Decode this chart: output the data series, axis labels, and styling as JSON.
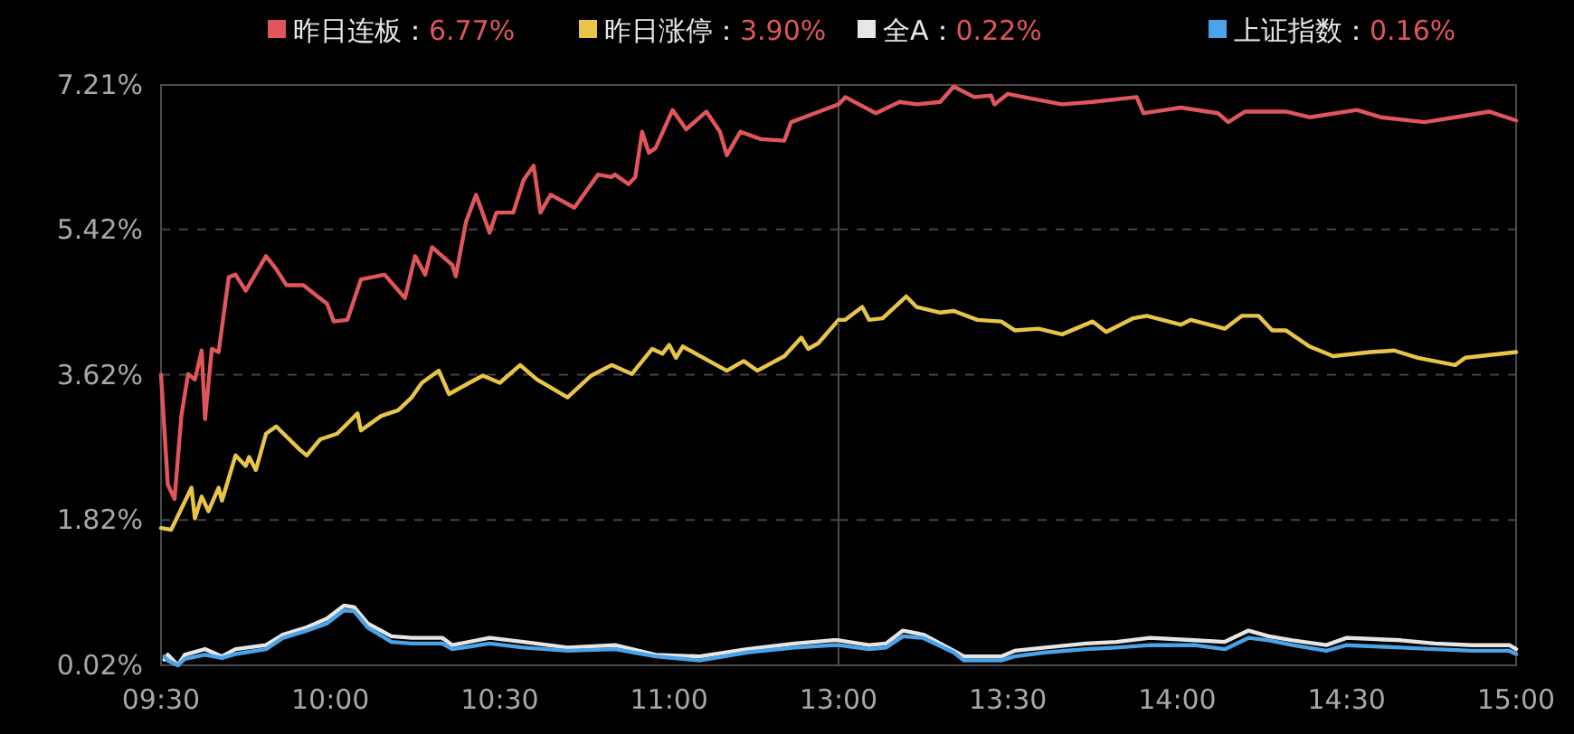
{
  "chart_data": [
    {
      "type": "line",
      "legend": "top",
      "grid": "y",
      "xlim": [
        9.5,
        11.5
      ],
      "xticks": [
        {
          "value": 9.5,
          "label": "09:30"
        },
        {
          "value": 10,
          "label": "10:00"
        },
        {
          "value": 10.5,
          "label": "10:30"
        },
        {
          "value": 11,
          "label": "11:00"
        }
      ],
      "ylim": [
        0.02,
        7.21
      ],
      "yticks": [
        {
          "value": 0.02,
          "label": "0.02%"
        },
        {
          "value": 1.82,
          "label": "1.82%"
        },
        {
          "value": 3.62,
          "label": "3.62%"
        },
        {
          "value": 5.42,
          "label": "5.42%"
        },
        {
          "value": 7.21,
          "label": "7.21%"
        }
      ],
      "series": [
        {
          "name": "昨日连板：6.77%",
          "color": "#e0565b",
          "x": [
            9.5,
            9.52,
            9.54,
            9.56,
            9.58,
            9.6,
            9.62,
            9.63,
            9.65,
            9.67,
            9.7,
            9.72,
            9.75,
            9.81,
            9.84,
            9.87,
            9.92,
            9.99,
            10.01,
            10.05,
            10.09,
            10.16,
            10.22,
            10.25,
            10.28,
            10.3,
            10.36,
            10.37,
            10.4,
            10.43,
            10.47,
            10.49,
            10.54,
            10.57,
            10.6,
            10.62,
            10.65,
            10.72,
            10.79,
            10.83,
            10.84,
            10.88,
            10.9,
            10.92,
            10.94,
            10.96,
            11.01,
            11.05,
            11.11,
            11.15,
            11.17,
            11.21,
            11.27,
            11.34,
            11.36,
            11.43,
            11.5
          ],
          "values": [
            3.62,
            2.26,
            2.08,
            3.11,
            3.63,
            3.56,
            3.92,
            3.07,
            3.94,
            3.9,
            4.83,
            4.86,
            4.66,
            5.09,
            4.93,
            4.73,
            4.73,
            4.5,
            4.28,
            4.3,
            4.8,
            4.86,
            4.57,
            5.09,
            4.86,
            5.2,
            4.98,
            4.84,
            5.51,
            5.85,
            5.38,
            5.63,
            5.63,
            6.03,
            6.21,
            5.63,
            5.85,
            5.69,
            6.1,
            6.07,
            6.1,
            5.98,
            6.07,
            6.63,
            6.37,
            6.43,
            6.9,
            6.66,
            6.88,
            6.63,
            6.34,
            6.63,
            6.54,
            6.52,
            6.75,
            6.86,
            6.97
          ]
        },
        {
          "name": "昨日涨停：3.90%",
          "color": "#e8c547",
          "x": [
            9.5,
            9.53,
            9.59,
            9.6,
            9.62,
            9.64,
            9.67,
            9.68,
            9.72,
            9.75,
            9.76,
            9.78,
            9.81,
            9.84,
            9.91,
            9.93,
            9.97,
            10.02,
            10.08,
            10.09,
            10.15,
            10.2,
            10.24,
            10.27,
            10.32,
            10.35,
            10.41,
            10.45,
            10.5,
            10.56,
            10.61,
            10.7,
            10.77,
            10.83,
            10.89,
            10.95,
            10.98,
            11.0,
            11.02,
            11.04,
            11.17,
            11.22,
            11.26,
            11.34,
            11.39,
            11.41,
            11.44,
            11.5
          ],
          "values": [
            1.72,
            1.7,
            2.22,
            1.84,
            2.11,
            1.93,
            2.22,
            2.06,
            2.62,
            2.49,
            2.6,
            2.44,
            2.89,
            2.98,
            2.69,
            2.62,
            2.82,
            2.89,
            3.14,
            2.93,
            3.11,
            3.18,
            3.34,
            3.52,
            3.67,
            3.38,
            3.52,
            3.61,
            3.52,
            3.74,
            3.56,
            3.34,
            3.61,
            3.74,
            3.63,
            3.94,
            3.88,
            3.99,
            3.83,
            3.97,
            3.67,
            3.79,
            3.67,
            3.85,
            4.08,
            3.94,
            4.01,
            4.3
          ]
        },
        {
          "name": "全A：0.22%",
          "color": "#e6e6e6",
          "x": [
            9.51,
            9.52,
            9.55,
            9.57,
            9.63,
            9.68,
            9.72,
            9.81,
            9.86,
            9.93,
            9.99,
            10.04,
            10.07,
            10.11,
            10.18,
            10.24,
            10.33,
            10.36,
            10.47,
            10.57,
            10.7,
            10.84,
            10.96,
            11.09,
            11.23,
            11.37,
            11.48,
            11.5
          ],
          "values": [
            0.09,
            0.15,
            0.02,
            0.15,
            0.22,
            0.13,
            0.22,
            0.27,
            0.4,
            0.49,
            0.6,
            0.76,
            0.74,
            0.54,
            0.38,
            0.36,
            0.36,
            0.27,
            0.36,
            0.31,
            0.24,
            0.27,
            0.15,
            0.13,
            0.22,
            0.29,
            0.33,
            0.33
          ]
        },
        {
          "name": "上证指数：0.16%",
          "color": "#4aa3e8",
          "x": [
            9.51,
            9.52,
            9.55,
            9.57,
            9.63,
            9.68,
            9.72,
            9.81,
            9.86,
            9.93,
            9.99,
            10.04,
            10.07,
            10.11,
            10.18,
            10.24,
            10.33,
            10.36,
            10.47,
            10.57,
            10.7,
            10.84,
            10.96,
            11.09,
            11.23,
            11.37,
            11.48,
            11.5
          ],
          "values": [
            0.13,
            0.08,
            0.02,
            0.1,
            0.15,
            0.11,
            0.16,
            0.22,
            0.36,
            0.45,
            0.54,
            0.7,
            0.69,
            0.49,
            0.31,
            0.29,
            0.29,
            0.22,
            0.29,
            0.24,
            0.2,
            0.22,
            0.13,
            0.08,
            0.18,
            0.24,
            0.27,
            0.27
          ]
        }
      ]
    },
    {
      "type": "line",
      "grid": "y",
      "tick_labels": "x",
      "xlim": [
        13,
        15
      ],
      "xticks": [
        {
          "value": 13,
          "label": "13:00"
        },
        {
          "value": 13.5,
          "label": "13:30"
        },
        {
          "value": 14,
          "label": "14:00"
        },
        {
          "value": 14.5,
          "label": "14:30"
        },
        {
          "value": 15,
          "label": "15:00"
        }
      ],
      "ylim": [
        0.02,
        7.21
      ],
      "yticks": [
        0.02,
        1.82,
        3.62,
        5.42,
        7.21
      ],
      "series": [
        {
          "color": "#e0565b",
          "x": [
            13.0,
            13.02,
            13.11,
            13.18,
            13.23,
            13.3,
            13.34,
            13.4,
            13.45,
            13.46,
            13.5,
            13.57,
            13.66,
            13.75,
            13.88,
            13.9,
            14.01,
            14.12,
            14.15,
            14.2,
            14.32,
            14.39,
            14.53,
            14.6,
            14.73,
            14.82,
            14.92,
            15.0
          ],
          "values": [
            6.97,
            7.06,
            6.86,
            7.0,
            6.97,
            7.0,
            7.19,
            7.06,
            7.08,
            6.97,
            7.1,
            7.04,
            6.97,
            7.0,
            7.06,
            6.86,
            6.93,
            6.86,
            6.75,
            6.88,
            6.88,
            6.81,
            6.9,
            6.81,
            6.75,
            6.81,
            6.88,
            6.77
          ]
        },
        {
          "color": "#e8c547",
          "x": [
            13.0,
            13.02,
            13.07,
            13.09,
            13.13,
            13.2,
            13.23,
            13.3,
            13.34,
            13.41,
            13.48,
            13.52,
            13.59,
            13.66,
            13.75,
            13.79,
            13.87,
            13.91,
            14.01,
            14.04,
            14.14,
            14.19,
            14.24,
            14.28,
            14.32,
            14.39,
            14.46,
            14.57,
            14.64,
            14.71,
            14.82,
            14.85,
            15.0
          ],
          "values": [
            4.3,
            4.3,
            4.46,
            4.3,
            4.32,
            4.59,
            4.46,
            4.39,
            4.41,
            4.3,
            4.28,
            4.17,
            4.19,
            4.12,
            4.28,
            4.15,
            4.32,
            4.35,
            4.24,
            4.3,
            4.19,
            4.35,
            4.35,
            4.17,
            4.17,
            3.97,
            3.85,
            3.9,
            3.92,
            3.83,
            3.74,
            3.83,
            3.9
          ]
        },
        {
          "color": "#e6e6e6",
          "x": [
            13.0,
            13.09,
            13.14,
            13.19,
            13.25,
            13.34,
            13.37,
            13.48,
            13.52,
            13.61,
            13.73,
            13.82,
            13.92,
            14.05,
            14.14,
            14.21,
            14.27,
            14.34,
            14.44,
            14.5,
            14.66,
            14.76,
            14.87,
            14.98,
            15.0
          ],
          "values": [
            0.33,
            0.27,
            0.29,
            0.45,
            0.4,
            0.2,
            0.13,
            0.13,
            0.2,
            0.24,
            0.29,
            0.31,
            0.36,
            0.33,
            0.31,
            0.45,
            0.38,
            0.33,
            0.27,
            0.36,
            0.33,
            0.29,
            0.27,
            0.27,
            0.22
          ]
        },
        {
          "color": "#4aa3e8",
          "x": [
            13.0,
            13.09,
            13.14,
            13.19,
            13.25,
            13.34,
            13.37,
            13.48,
            13.52,
            13.61,
            13.73,
            13.82,
            13.92,
            14.05,
            14.14,
            14.21,
            14.27,
            14.34,
            14.44,
            14.5,
            14.66,
            14.76,
            14.87,
            14.98,
            15.0
          ],
          "values": [
            0.27,
            0.22,
            0.24,
            0.38,
            0.36,
            0.18,
            0.08,
            0.08,
            0.13,
            0.18,
            0.22,
            0.24,
            0.27,
            0.27,
            0.22,
            0.36,
            0.33,
            0.27,
            0.2,
            0.27,
            0.24,
            0.22,
            0.2,
            0.2,
            0.16
          ]
        }
      ]
    }
  ]
}
